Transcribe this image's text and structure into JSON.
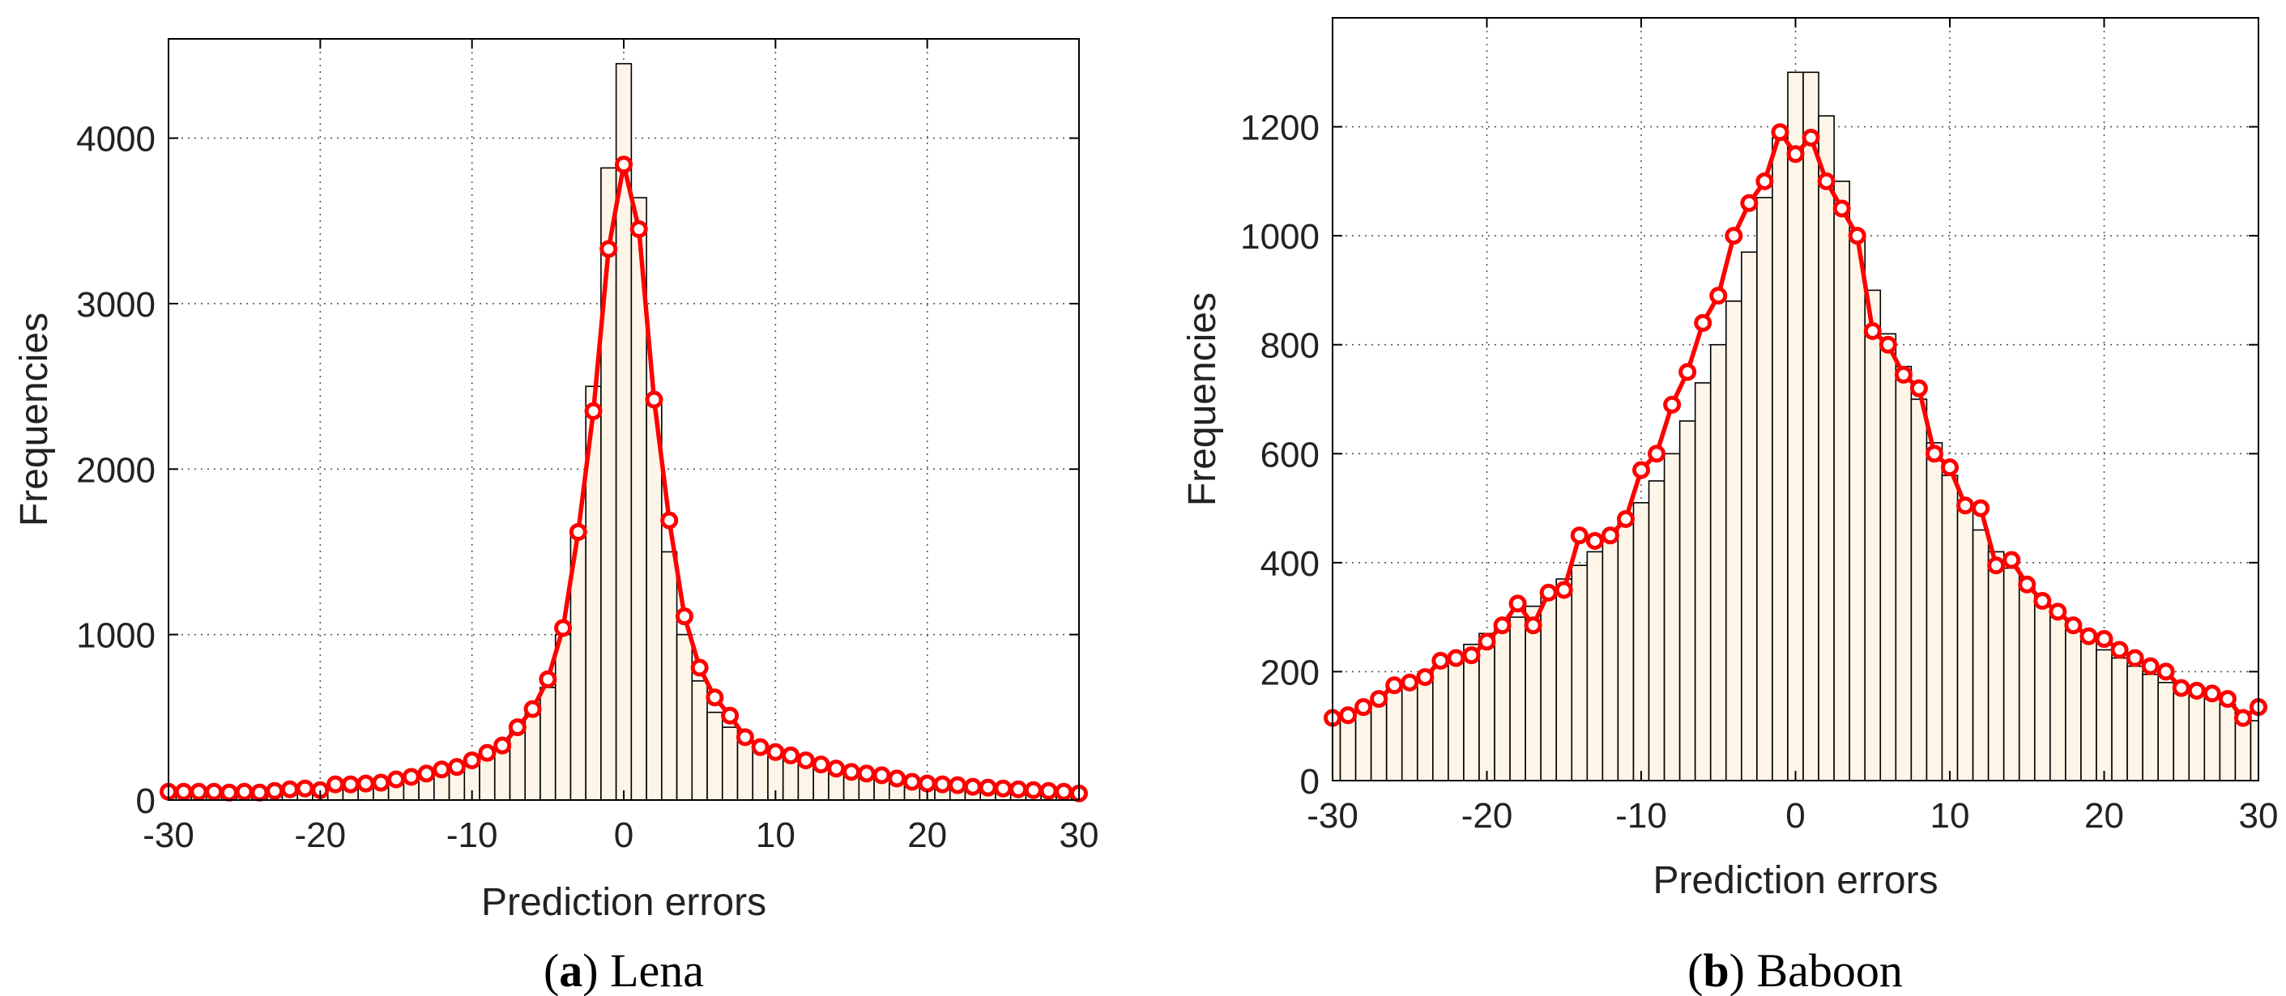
{
  "chart_data": [
    {
      "type": "bar",
      "overlay_type": "line",
      "caption": {
        "paren_open": "(",
        "letter": "a",
        "paren_close": ")",
        "name": "Lena"
      },
      "xlabel": "Prediction errors",
      "ylabel": "Frequencies",
      "xlim": [
        -30,
        30
      ],
      "ylim": [
        0,
        4600
      ],
      "xticks": [
        -30,
        -20,
        -10,
        0,
        10,
        20,
        30
      ],
      "yticks": [
        0,
        1000,
        2000,
        3000,
        4000
      ],
      "grid": true,
      "bar_color": "#fdf6e8",
      "line_color": "#ff0000",
      "x": [
        -30,
        -29,
        -28,
        -27,
        -26,
        -25,
        -24,
        -23,
        -22,
        -21,
        -20,
        -19,
        -18,
        -17,
        -16,
        -15,
        -14,
        -13,
        -12,
        -11,
        -10,
        -9,
        -8,
        -7,
        -6,
        -5,
        -4,
        -3,
        -2,
        -1,
        0,
        1,
        2,
        3,
        4,
        5,
        6,
        7,
        8,
        9,
        10,
        11,
        12,
        13,
        14,
        15,
        16,
        17,
        18,
        19,
        20,
        21,
        22,
        23,
        24,
        25,
        26,
        27,
        28,
        29,
        30
      ],
      "bar_values": [
        40,
        40,
        42,
        45,
        45,
        48,
        50,
        52,
        55,
        58,
        62,
        70,
        75,
        85,
        95,
        110,
        125,
        145,
        170,
        195,
        230,
        275,
        330,
        420,
        520,
        680,
        1000,
        1620,
        2500,
        3820,
        4450,
        3640,
        2420,
        1500,
        1000,
        720,
        530,
        440,
        350,
        300,
        260,
        240,
        220,
        200,
        180,
        160,
        140,
        130,
        120,
        110,
        100,
        95,
        88,
        80,
        72,
        65,
        60,
        55,
        50,
        45,
        38
      ],
      "line_values": [
        50,
        50,
        50,
        50,
        45,
        50,
        45,
        55,
        65,
        70,
        60,
        95,
        95,
        100,
        105,
        125,
        140,
        160,
        185,
        200,
        240,
        285,
        330,
        440,
        550,
        730,
        1040,
        1620,
        2350,
        3330,
        3840,
        3450,
        2420,
        1690,
        1110,
        800,
        620,
        510,
        380,
        320,
        290,
        270,
        240,
        215,
        190,
        170,
        160,
        150,
        130,
        110,
        100,
        95,
        90,
        80,
        75,
        70,
        65,
        60,
        55,
        50,
        40
      ]
    },
    {
      "type": "bar",
      "overlay_type": "line",
      "caption": {
        "paren_open": "(",
        "letter": "b",
        "paren_close": ")",
        "name": "Baboon"
      },
      "xlabel": "Prediction errors",
      "ylabel": "Frequencies",
      "xlim": [
        -30,
        30
      ],
      "ylim": [
        0,
        1400
      ],
      "xticks": [
        -30,
        -20,
        -10,
        0,
        10,
        20,
        30
      ],
      "yticks": [
        0,
        200,
        400,
        600,
        800,
        1000,
        1200
      ],
      "grid": true,
      "bar_color": "#fdf6e8",
      "line_color": "#ff0000",
      "x": [
        -30,
        -29,
        -28,
        -27,
        -26,
        -25,
        -24,
        -23,
        -22,
        -21,
        -20,
        -19,
        -18,
        -17,
        -16,
        -15,
        -14,
        -13,
        -12,
        -11,
        -10,
        -9,
        -8,
        -7,
        -6,
        -5,
        -4,
        -3,
        -2,
        -1,
        0,
        1,
        2,
        3,
        4,
        5,
        6,
        7,
        8,
        9,
        10,
        11,
        12,
        13,
        14,
        15,
        16,
        17,
        18,
        19,
        20,
        21,
        22,
        23,
        24,
        25,
        26,
        27,
        28,
        29,
        30
      ],
      "bar_values": [
        110,
        120,
        140,
        155,
        170,
        180,
        195,
        210,
        230,
        250,
        270,
        285,
        300,
        320,
        345,
        370,
        395,
        420,
        445,
        475,
        510,
        550,
        600,
        660,
        730,
        800,
        880,
        970,
        1070,
        1180,
        1300,
        1300,
        1220,
        1100,
        1000,
        900,
        820,
        760,
        700,
        620,
        560,
        500,
        460,
        420,
        390,
        360,
        330,
        300,
        280,
        260,
        240,
        225,
        210,
        195,
        180,
        170,
        160,
        150,
        140,
        125,
        110
      ],
      "line_values": [
        115,
        120,
        135,
        150,
        175,
        180,
        190,
        220,
        225,
        230,
        255,
        285,
        325,
        285,
        345,
        350,
        450,
        440,
        450,
        480,
        570,
        600,
        690,
        750,
        840,
        890,
        1000,
        1060,
        1100,
        1190,
        1150,
        1180,
        1100,
        1050,
        1000,
        825,
        800,
        745,
        720,
        600,
        575,
        505,
        500,
        395,
        405,
        360,
        330,
        310,
        285,
        265,
        260,
        240,
        225,
        210,
        200,
        170,
        165,
        160,
        150,
        115,
        135
      ]
    }
  ]
}
